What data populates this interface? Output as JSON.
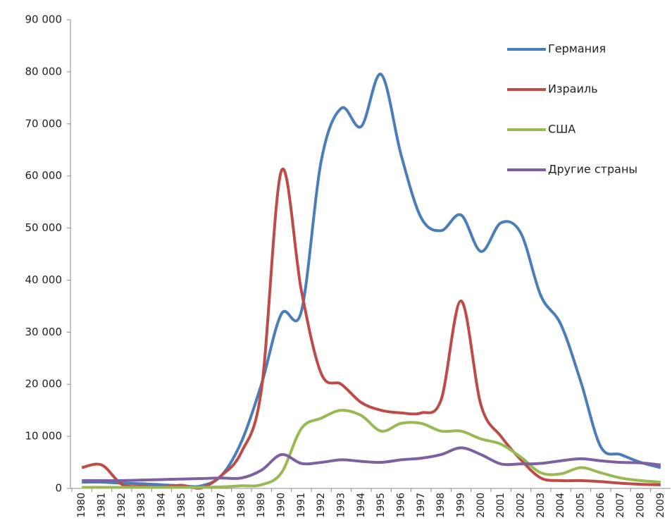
{
  "chart_data": {
    "type": "line",
    "categories": [
      "1980",
      "1981",
      "1982",
      "1983",
      "1984",
      "1985",
      "1986",
      "1987",
      "1988",
      "1989",
      "1990",
      "1991",
      "1992",
      "1993",
      "1994",
      "1995",
      "1996",
      "1997",
      "1998",
      "1999",
      "2000",
      "2001",
      "2002",
      "2003",
      "2004",
      "2005",
      "2006",
      "2007",
      "2008",
      "2009"
    ],
    "series": [
      {
        "name": "Германия",
        "color": "#4a7ebb",
        "values": [
          1200,
          1200,
          1000,
          900,
          700,
          500,
          500,
          2500,
          9000,
          20000,
          33500,
          34000,
          63000,
          73000,
          69500,
          79500,
          64000,
          52000,
          49500,
          52500,
          45500,
          51000,
          49000,
          37000,
          31500,
          20500,
          8000,
          6500,
          5000,
          4000
        ]
      },
      {
        "name": "Израиль",
        "color": "#be4b48",
        "values": [
          4000,
          4500,
          800,
          400,
          300,
          600,
          100,
          2500,
          7000,
          19000,
          61000,
          38000,
          22000,
          20000,
          16500,
          15000,
          14500,
          14500,
          17000,
          36000,
          16000,
          10000,
          5500,
          2000,
          1500,
          1500,
          1300,
          1000,
          800,
          700
        ]
      },
      {
        "name": "США",
        "color": "#98b954",
        "values": [
          200,
          200,
          200,
          200,
          200,
          200,
          200,
          300,
          500,
          700,
          3000,
          11500,
          13500,
          15000,
          14000,
          11000,
          12500,
          12500,
          11000,
          11000,
          9500,
          8500,
          6000,
          3000,
          2800,
          4000,
          3000,
          2000,
          1500,
          1200
        ]
      },
      {
        "name": "Другие страны",
        "color": "#7d60a0",
        "values": [
          1500,
          1500,
          1500,
          1600,
          1700,
          1800,
          1900,
          2000,
          2000,
          3500,
          6500,
          4800,
          5000,
          5500,
          5200,
          5000,
          5500,
          5800,
          6500,
          7800,
          6500,
          4700,
          4700,
          4800,
          5300,
          5700,
          5300,
          5000,
          4900,
          4500
        ]
      }
    ],
    "ylim": [
      0,
      90000
    ],
    "yticks": [
      {
        "value": 0,
        "label": "0"
      },
      {
        "value": 10000,
        "label": "10 000"
      },
      {
        "value": 20000,
        "label": "20 000"
      },
      {
        "value": 30000,
        "label": "30 000"
      },
      {
        "value": 40000,
        "label": "40 000"
      },
      {
        "value": 50000,
        "label": "50 000"
      },
      {
        "value": 60000,
        "label": "60 000"
      },
      {
        "value": 70000,
        "label": "70 000"
      },
      {
        "value": 80000,
        "label": "80 000"
      },
      {
        "value": 90000,
        "label": "90 000"
      }
    ],
    "legend": "top-right"
  }
}
